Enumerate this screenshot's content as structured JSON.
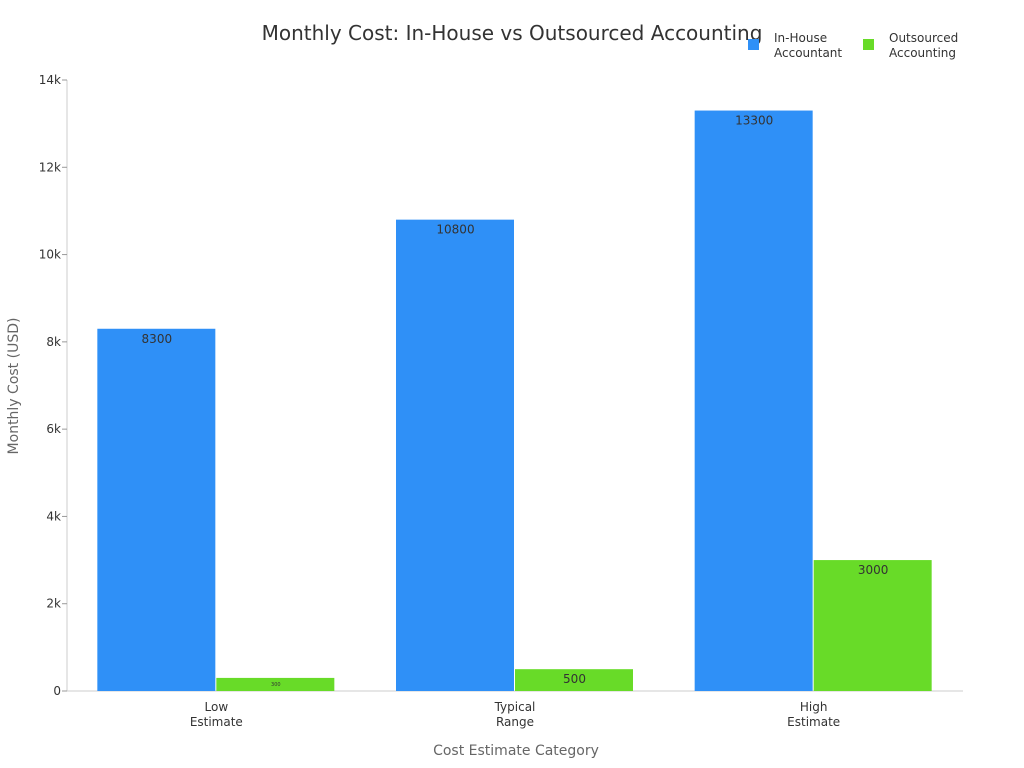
{
  "chart_data": {
    "type": "bar",
    "title": "Monthly Cost: In-House vs Outsourced Accounting",
    "xlabel": "Cost Estimate Category",
    "ylabel": "Monthly Cost (USD)",
    "categories": [
      [
        "Low",
        "Estimate"
      ],
      [
        "Typical",
        "Range"
      ],
      [
        "High",
        "Estimate"
      ]
    ],
    "series": [
      {
        "name": [
          "In-House",
          "Accountant"
        ],
        "values": [
          8300,
          10800,
          13300
        ],
        "color": "#2f90f7"
      },
      {
        "name": [
          "Outsourced",
          "Accounting"
        ],
        "values": [
          300,
          500,
          3000
        ],
        "color": "#68db28"
      }
    ],
    "ylim": [
      0,
      14000
    ],
    "yticks": [
      0,
      2000,
      4000,
      6000,
      8000,
      10000,
      12000,
      14000
    ],
    "ytick_labels": [
      "0",
      "2k",
      "4k",
      "6k",
      "8k",
      "10k",
      "12k",
      "14k"
    ],
    "grid": false,
    "legend": "top-right"
  }
}
